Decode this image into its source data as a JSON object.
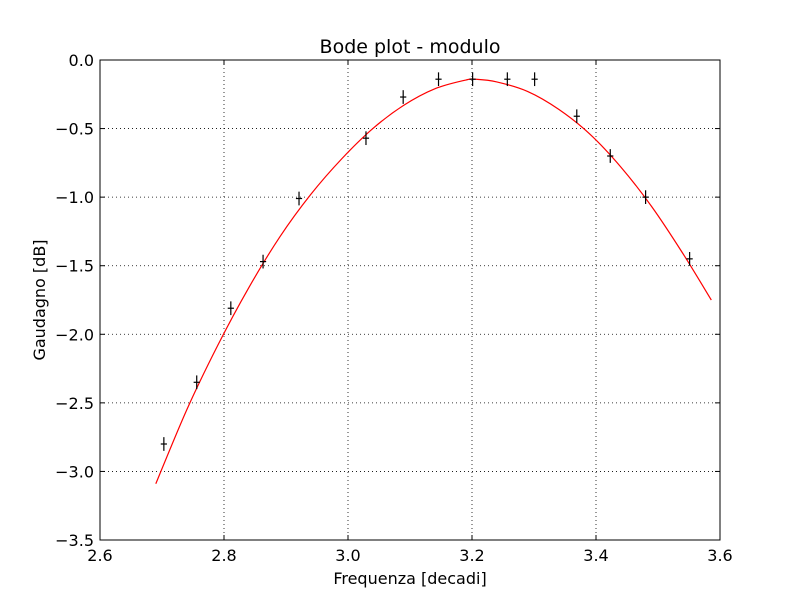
{
  "chart_data": {
    "type": "scatter",
    "title": "Bode plot - modulo",
    "xlabel": "Frequenza [decadi]",
    "ylabel": "Gaudagno [dB]",
    "xlim": [
      2.6,
      3.6
    ],
    "ylim": [
      -3.5,
      0.0
    ],
    "xticks": [
      2.6,
      2.8,
      3.0,
      3.2,
      3.4,
      3.6
    ],
    "xtick_labels": [
      "2.6",
      "2.8",
      "3.0",
      "3.2",
      "3.4",
      "3.6"
    ],
    "yticks": [
      0.0,
      -0.5,
      -1.0,
      -1.5,
      -2.0,
      -2.5,
      -3.0,
      -3.5
    ],
    "ytick_labels": [
      "0.0",
      "−0.5",
      "−1.0",
      "−1.5",
      "−2.0",
      "−2.5",
      "−3.0",
      "−3.5"
    ],
    "grid": true,
    "series": [
      {
        "kind": "points_with_errorbars",
        "color": "#000000",
        "x": [
          2.703,
          2.756,
          2.811,
          2.863,
          2.921,
          3.029,
          3.089,
          3.146,
          3.201,
          3.257,
          3.301,
          3.369,
          3.423,
          3.48,
          3.551
        ],
        "y": [
          -2.8,
          -2.35,
          -1.81,
          -1.47,
          -1.01,
          -0.57,
          -0.27,
          -0.14,
          -0.14,
          -0.14,
          -0.14,
          -0.41,
          -0.7,
          -1.0,
          -1.45
        ],
        "yerr": [
          0.05,
          0.05,
          0.05,
          0.05,
          0.05,
          0.05,
          0.05,
          0.05,
          0.05,
          0.05,
          0.05,
          0.05,
          0.05,
          0.05,
          0.05
        ],
        "xerr": [
          0.005,
          0.005,
          0.005,
          0.005,
          0.005,
          0.005,
          0.005,
          0.005,
          0.005,
          0.005,
          0.005,
          0.005,
          0.005,
          0.005,
          0.005
        ]
      },
      {
        "kind": "fit_curve",
        "color": "#ff0000",
        "x": [
          2.69,
          2.74,
          2.79,
          2.84,
          2.89,
          2.94,
          2.99,
          3.04,
          3.09,
          3.14,
          3.19,
          3.205,
          3.24,
          3.29,
          3.34,
          3.39,
          3.44,
          3.49,
          3.54,
          3.586
        ],
        "y": [
          -3.09,
          -2.55,
          -2.08,
          -1.66,
          -1.29,
          -0.98,
          -0.72,
          -0.5,
          -0.33,
          -0.21,
          -0.146,
          -0.14,
          -0.16,
          -0.23,
          -0.36,
          -0.54,
          -0.78,
          -1.07,
          -1.41,
          -1.75
        ]
      }
    ]
  }
}
